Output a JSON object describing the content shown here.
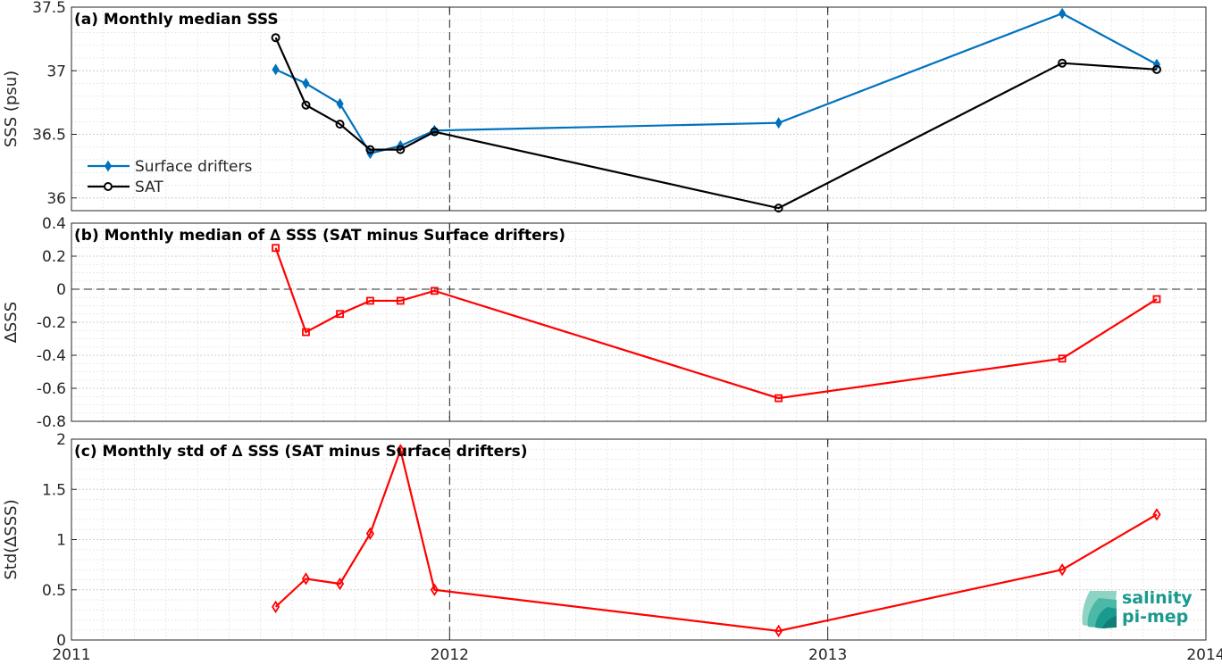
{
  "chart_data": [
    {
      "panel": "a",
      "type": "line",
      "title": "(a) Monthly median SSS",
      "ylabel": "SSS (psu)",
      "xlabel": "",
      "xlim": [
        2011,
        2014
      ],
      "ylim": [
        35.9,
        37.5
      ],
      "yticks": [
        "37.5",
        "37",
        "36.5",
        "36"
      ],
      "xticks": [],
      "grid": true,
      "legend": "left-center",
      "series": [
        {
          "name": "Surface drifters",
          "color": "#0072bd",
          "marker": "diamond-filled",
          "x": [
            2011.54,
            2011.62,
            2011.71,
            2011.79,
            2011.87,
            2011.96,
            2012.87,
            2013.62,
            2013.87
          ],
          "y": [
            37.01,
            36.9,
            36.74,
            36.35,
            36.41,
            36.53,
            36.59,
            37.45,
            37.05
          ]
        },
        {
          "name": "SAT",
          "color": "#000000",
          "marker": "circle",
          "x": [
            2011.54,
            2011.62,
            2011.71,
            2011.79,
            2011.87,
            2011.96,
            2012.87,
            2013.62,
            2013.87
          ],
          "y": [
            37.26,
            36.73,
            36.58,
            36.38,
            36.38,
            36.52,
            35.92,
            37.06,
            37.01
          ]
        }
      ]
    },
    {
      "panel": "b",
      "type": "line",
      "title": "(b) Monthly median of ∆ SSS (SAT minus Surface drifters)",
      "ylabel": "∆SSS",
      "xlabel": "",
      "xlim": [
        2011,
        2014
      ],
      "ylim": [
        -0.8,
        0.4
      ],
      "yticks": [
        "0.4",
        "0.2",
        "0",
        "-0.2",
        "-0.4",
        "-0.6",
        "-0.8"
      ],
      "xticks": [],
      "grid": true,
      "series": [
        {
          "color": "#ff0000",
          "marker": "square",
          "x": [
            2011.54,
            2011.62,
            2011.71,
            2011.79,
            2011.87,
            2011.96,
            2012.87,
            2013.62,
            2013.87
          ],
          "y": [
            0.25,
            -0.26,
            -0.15,
            -0.07,
            -0.07,
            -0.01,
            -0.66,
            -0.42,
            -0.06
          ]
        }
      ]
    },
    {
      "panel": "c",
      "type": "line",
      "title": "(c) Monthly std of ∆ SSS (SAT minus Surface drifters)",
      "ylabel": "Std(∆SSS)",
      "xlabel": "",
      "xlim": [
        2011,
        2014
      ],
      "ylim": [
        0,
        2
      ],
      "yticks": [
        "2",
        "1.5",
        "1",
        "0.5",
        "0"
      ],
      "xticks": [
        "2011",
        "2012",
        "2013",
        "2014"
      ],
      "grid": true,
      "series": [
        {
          "color": "#ff0000",
          "marker": "diamond",
          "x": [
            2011.54,
            2011.62,
            2011.71,
            2011.79,
            2011.87,
            2011.96,
            2012.87,
            2013.62,
            2013.87
          ],
          "y": [
            0.33,
            0.61,
            0.56,
            1.06,
            1.89,
            0.5,
            0.09,
            0.7,
            1.25
          ]
        }
      ]
    }
  ],
  "logo": {
    "line1": "salinity",
    "line2": "pi-mep",
    "color": "#1a9a8e"
  }
}
